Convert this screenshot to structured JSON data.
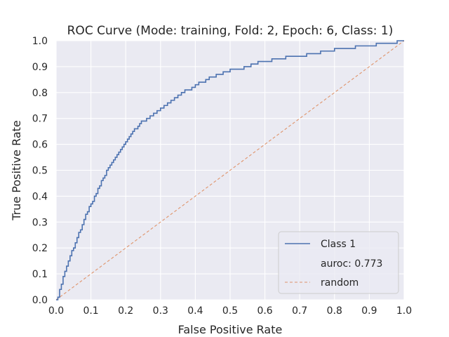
{
  "chart_data": {
    "type": "line",
    "title": "ROC Curve (Mode: training, Fold: 2, Epoch: 6, Class: 1)",
    "xlabel": "False Positive Rate",
    "ylabel": "True Positive Rate",
    "xlim": [
      0.0,
      1.0
    ],
    "ylim": [
      0.0,
      1.0
    ],
    "xticks": [
      "0.0",
      "0.1",
      "0.2",
      "0.3",
      "0.4",
      "0.5",
      "0.6",
      "0.7",
      "0.8",
      "0.9",
      "1.0"
    ],
    "yticks": [
      "0.0",
      "0.1",
      "0.2",
      "0.3",
      "0.4",
      "0.5",
      "0.6",
      "0.7",
      "0.8",
      "0.9",
      "1.0"
    ],
    "grid": true,
    "legend_position": "bottom-right",
    "background_color": "#eaeaf2",
    "series": [
      {
        "name": "Class 1",
        "color": "#4c72b0",
        "style": "step",
        "x": [
          0.0,
          0.005,
          0.01,
          0.015,
          0.02,
          0.025,
          0.03,
          0.035,
          0.04,
          0.045,
          0.05,
          0.055,
          0.06,
          0.065,
          0.07,
          0.075,
          0.08,
          0.085,
          0.09,
          0.095,
          0.1,
          0.105,
          0.11,
          0.115,
          0.12,
          0.125,
          0.13,
          0.135,
          0.14,
          0.145,
          0.15,
          0.155,
          0.16,
          0.165,
          0.17,
          0.175,
          0.18,
          0.185,
          0.19,
          0.195,
          0.2,
          0.205,
          0.21,
          0.215,
          0.22,
          0.225,
          0.23,
          0.235,
          0.24,
          0.245,
          0.25,
          0.26,
          0.27,
          0.28,
          0.29,
          0.3,
          0.31,
          0.32,
          0.33,
          0.34,
          0.35,
          0.36,
          0.37,
          0.38,
          0.39,
          0.4,
          0.41,
          0.42,
          0.43,
          0.44,
          0.45,
          0.46,
          0.47,
          0.48,
          0.49,
          0.5,
          0.52,
          0.54,
          0.56,
          0.58,
          0.6,
          0.62,
          0.64,
          0.66,
          0.68,
          0.7,
          0.72,
          0.74,
          0.76,
          0.78,
          0.8,
          0.82,
          0.84,
          0.86,
          0.88,
          0.9,
          0.92,
          0.94,
          0.96,
          0.98,
          1.0
        ],
        "y": [
          0.0,
          0.01,
          0.04,
          0.06,
          0.09,
          0.11,
          0.13,
          0.15,
          0.17,
          0.19,
          0.2,
          0.22,
          0.24,
          0.26,
          0.27,
          0.29,
          0.31,
          0.33,
          0.34,
          0.36,
          0.37,
          0.38,
          0.4,
          0.41,
          0.43,
          0.44,
          0.46,
          0.47,
          0.48,
          0.5,
          0.51,
          0.52,
          0.53,
          0.54,
          0.55,
          0.56,
          0.57,
          0.58,
          0.59,
          0.6,
          0.61,
          0.62,
          0.63,
          0.64,
          0.65,
          0.66,
          0.66,
          0.67,
          0.68,
          0.69,
          0.69,
          0.7,
          0.71,
          0.72,
          0.73,
          0.74,
          0.75,
          0.76,
          0.77,
          0.78,
          0.79,
          0.8,
          0.81,
          0.81,
          0.82,
          0.83,
          0.84,
          0.84,
          0.85,
          0.86,
          0.86,
          0.87,
          0.87,
          0.88,
          0.88,
          0.89,
          0.89,
          0.9,
          0.91,
          0.92,
          0.92,
          0.93,
          0.93,
          0.94,
          0.94,
          0.94,
          0.95,
          0.95,
          0.96,
          0.96,
          0.97,
          0.97,
          0.97,
          0.98,
          0.98,
          0.98,
          0.99,
          0.99,
          0.99,
          1.0,
          1.0
        ]
      },
      {
        "name": "random",
        "color": "#dd8452",
        "style": "dashed",
        "x": [
          0.0,
          1.0
        ],
        "y": [
          0.0,
          1.0
        ]
      }
    ],
    "legend": [
      {
        "label": "Class 1",
        "kind": "line",
        "series": 0
      },
      {
        "label": "auroc: 0.773",
        "kind": "none"
      },
      {
        "label": "random",
        "kind": "dashed",
        "series": 1
      }
    ]
  }
}
